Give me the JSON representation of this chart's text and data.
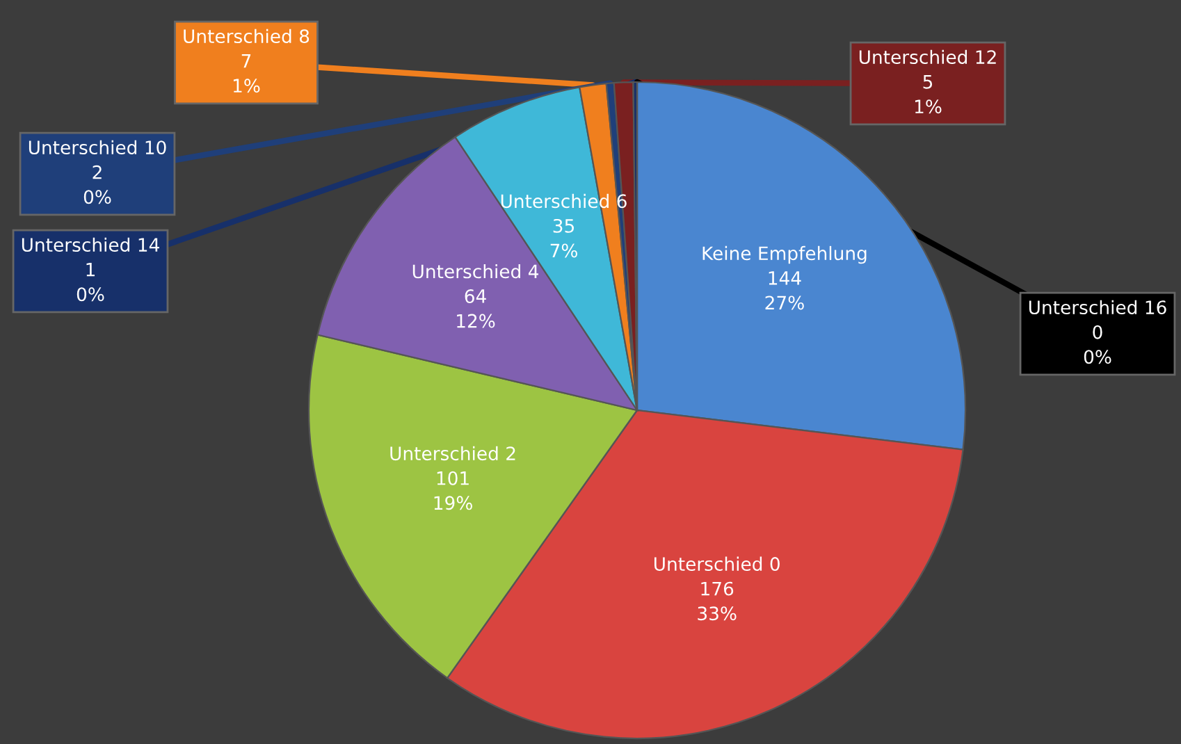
{
  "chart_data": {
    "type": "pie",
    "categories": [
      "Keine Empfehlung",
      "Unterschied 0",
      "Unterschied 2",
      "Unterschied 4",
      "Unterschied 6",
      "Unterschied 8",
      "Unterschied 10",
      "Unterschied 12",
      "Unterschied 14",
      "Unterschied 16"
    ],
    "values": [
      144,
      176,
      101,
      64,
      35,
      7,
      2,
      5,
      1,
      0
    ],
    "value_labels": [
      "144\n27%",
      "176\n33%",
      "101\n19%",
      "64\n12%",
      "35\n7%",
      "7\n1%",
      "2\n0%",
      "5\n1%",
      "1\n0%",
      "0\n0%"
    ],
    "colors": [
      "#4a86d0",
      "#d9443f",
      "#9dc443",
      "#8060b0",
      "#3fb8d8",
      "#f07f1e",
      "#1f3f7a",
      "#7a2020",
      "#17306a",
      "#000000"
    ],
    "legend": false
  }
}
